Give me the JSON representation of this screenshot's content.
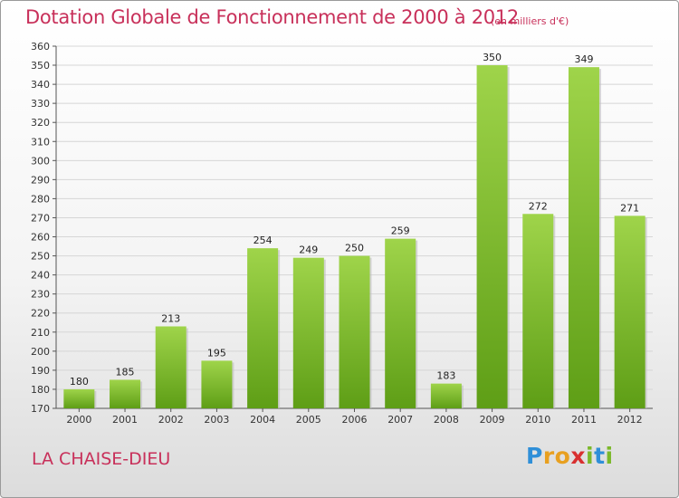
{
  "title": "Dotation Globale de Fonctionnement de 2000 à 2012",
  "subtitle": "(en milliers d'€)",
  "commune": "LA CHAISE-DIEU",
  "logo": {
    "letters": [
      {
        "char": "P",
        "color": "#2f8fd8"
      },
      {
        "char": "r",
        "color": "#e8a020"
      },
      {
        "char": "o",
        "color": "#e8a020"
      },
      {
        "char": "x",
        "color": "#d83030"
      },
      {
        "char": "i",
        "color": "#7bb82a"
      },
      {
        "char": "t",
        "color": "#2f8fd8"
      },
      {
        "char": "i",
        "color": "#7bb82a"
      }
    ]
  },
  "colors": {
    "bar_light": "#9fd44a",
    "bar_dark": "#5e9e16",
    "title": "#c8305a",
    "grid": "#d6d6d6"
  },
  "chart_data": {
    "type": "bar",
    "categories": [
      "2000",
      "2001",
      "2002",
      "2003",
      "2004",
      "2005",
      "2006",
      "2007",
      "2008",
      "2009",
      "2010",
      "2011",
      "2012"
    ],
    "values": [
      180,
      185,
      213,
      195,
      254,
      249,
      250,
      259,
      183,
      350,
      272,
      349,
      271
    ],
    "ylim": [
      170,
      360
    ],
    "yticks": [
      170,
      180,
      190,
      200,
      210,
      220,
      230,
      240,
      250,
      260,
      270,
      280,
      290,
      300,
      310,
      320,
      330,
      340,
      350,
      360
    ],
    "grid": true,
    "legend": "none"
  }
}
